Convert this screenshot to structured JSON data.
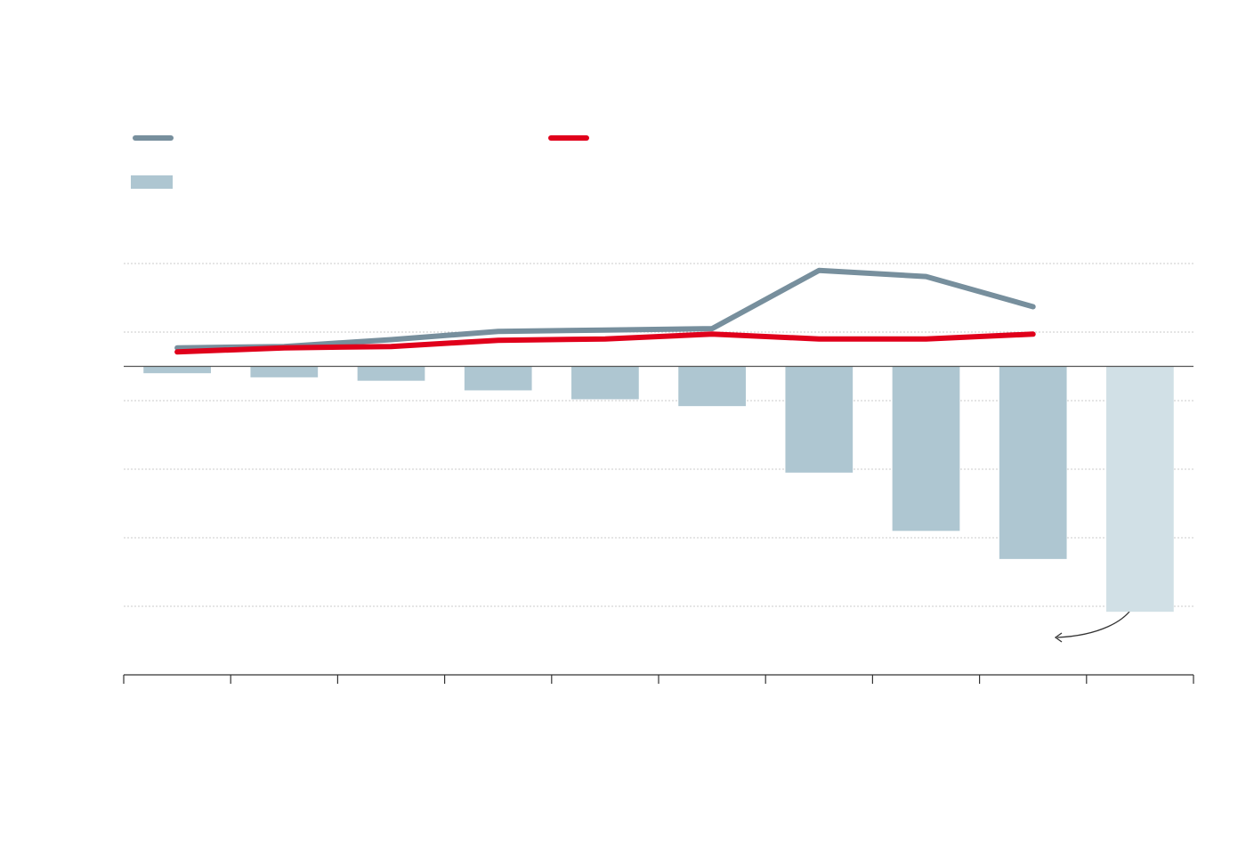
{
  "chart_data": {
    "type": "combo",
    "categories": [
      null,
      null,
      null,
      null,
      null,
      null,
      null,
      null,
      null,
      null
    ],
    "series": [
      {
        "type": "bar",
        "color": "#aec6d1",
        "colors": [
          "#aec6d1",
          "#aec6d1",
          "#aec6d1",
          "#aec6d1",
          "#aec6d1",
          "#aec6d1",
          "#aec6d1",
          "#aec6d1",
          "#aec6d1",
          "#d1e0e6"
        ],
        "values": [
          -1.0,
          -1.6,
          -2.1,
          -3.5,
          -4.8,
          -5.8,
          -15.5,
          -24.0,
          -28.1,
          -35.8
        ]
      },
      {
        "type": "line",
        "color": "#778f9d",
        "values": [
          2.7,
          2.9,
          3.9,
          5.1,
          5.3,
          5.5,
          14.0,
          13.1,
          8.7,
          null
        ]
      },
      {
        "type": "line",
        "color": "#e0001b",
        "values": [
          2.1,
          2.7,
          2.9,
          3.8,
          4.0,
          4.7,
          4.0,
          4.0,
          4.7,
          null
        ]
      }
    ],
    "ylim": [
      -45,
      15
    ],
    "yticks": [
      15,
      5,
      -5,
      -15,
      -25,
      -35
    ],
    "grid": true
  }
}
